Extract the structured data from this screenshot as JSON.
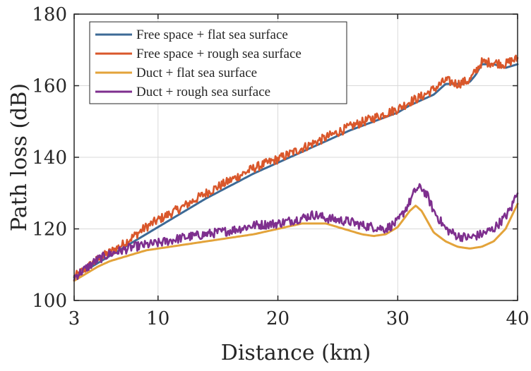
{
  "chart_data": {
    "type": "line",
    "title": "",
    "xlabel": "Distance (km)",
    "ylabel": "Path loss (dB)",
    "xlim": [
      3,
      40
    ],
    "ylim": [
      100,
      180
    ],
    "xticks": [
      3,
      10,
      20,
      30,
      40
    ],
    "yticks": [
      100,
      120,
      140,
      160,
      180
    ],
    "grid": true,
    "legend_position": "top-left",
    "series": [
      {
        "name": "Free space + flat sea surface",
        "color": "#3d6a96",
        "x": [
          3,
          4,
          5,
          6,
          7,
          8,
          9,
          10,
          12,
          14,
          16,
          18,
          20,
          22,
          24,
          26,
          28,
          30,
          31,
          32,
          33,
          34,
          35,
          36,
          36.5,
          37,
          38,
          39,
          39.5,
          40
        ],
        "y": [
          106.5,
          108.5,
          110.5,
          112.5,
          114.5,
          116.5,
          118.5,
          120.5,
          124.5,
          128.5,
          132,
          135.5,
          138.5,
          141.5,
          144.5,
          147.5,
          150,
          152.5,
          154.5,
          156,
          157.5,
          160.5,
          160.5,
          161,
          163,
          166,
          166,
          165,
          165.5,
          166
        ]
      },
      {
        "name": "Free space + rough sea surface",
        "color": "#d9572b",
        "x": [
          3,
          4,
          5,
          6,
          7,
          8,
          9,
          10,
          12,
          14,
          16,
          18,
          20,
          22,
          24,
          26,
          28,
          30,
          31,
          32,
          33,
          34,
          35,
          36,
          36.5,
          37,
          38,
          39,
          39.5,
          40
        ],
        "y": [
          106.5,
          109,
          111.5,
          113.5,
          115.5,
          118,
          120.5,
          122.5,
          126,
          130,
          133.5,
          137,
          139.5,
          142.5,
          145.5,
          148.5,
          151,
          153.5,
          155.5,
          157,
          159,
          161.5,
          160.5,
          161.5,
          164,
          166.5,
          166.5,
          166,
          167,
          167.5
        ]
      },
      {
        "name": "Duct + flat sea surface",
        "color": "#e3a33a",
        "x": [
          3,
          4,
          5,
          6,
          7,
          8,
          9,
          10,
          12,
          14,
          16,
          18,
          20,
          22,
          24,
          26,
          27,
          28,
          29,
          30,
          31,
          31.5,
          32,
          33,
          34,
          35,
          36,
          37,
          38,
          39,
          40
        ],
        "y": [
          105.5,
          107.5,
          109.5,
          111,
          112,
          113,
          114,
          114.5,
          115.5,
          116.5,
          117.5,
          118.5,
          120,
          121.5,
          121.5,
          119.5,
          118.5,
          118,
          118.5,
          120.5,
          125,
          126.5,
          125,
          119,
          116.5,
          115,
          114.5,
          115,
          116.5,
          120,
          127
        ]
      },
      {
        "name": "Duct + rough sea surface",
        "color": "#7e2f8e",
        "x": [
          3,
          4,
          5,
          6,
          7,
          8,
          9,
          10,
          12,
          14,
          16,
          18,
          20,
          22,
          23,
          24,
          26,
          27,
          28,
          29,
          30,
          31,
          31.5,
          32,
          32.5,
          33,
          34,
          35,
          36,
          37,
          38,
          39,
          39.5,
          40
        ],
        "y": [
          106.5,
          109,
          111.5,
          113,
          114,
          115,
          115.5,
          116,
          117.5,
          118.5,
          119.5,
          121,
          121.5,
          123,
          124,
          123,
          122,
          121,
          120.5,
          120,
          122,
          127.5,
          131,
          131.5,
          129,
          125,
          120,
          118,
          117.5,
          118.5,
          120,
          123.5,
          126,
          131
        ]
      }
    ]
  }
}
